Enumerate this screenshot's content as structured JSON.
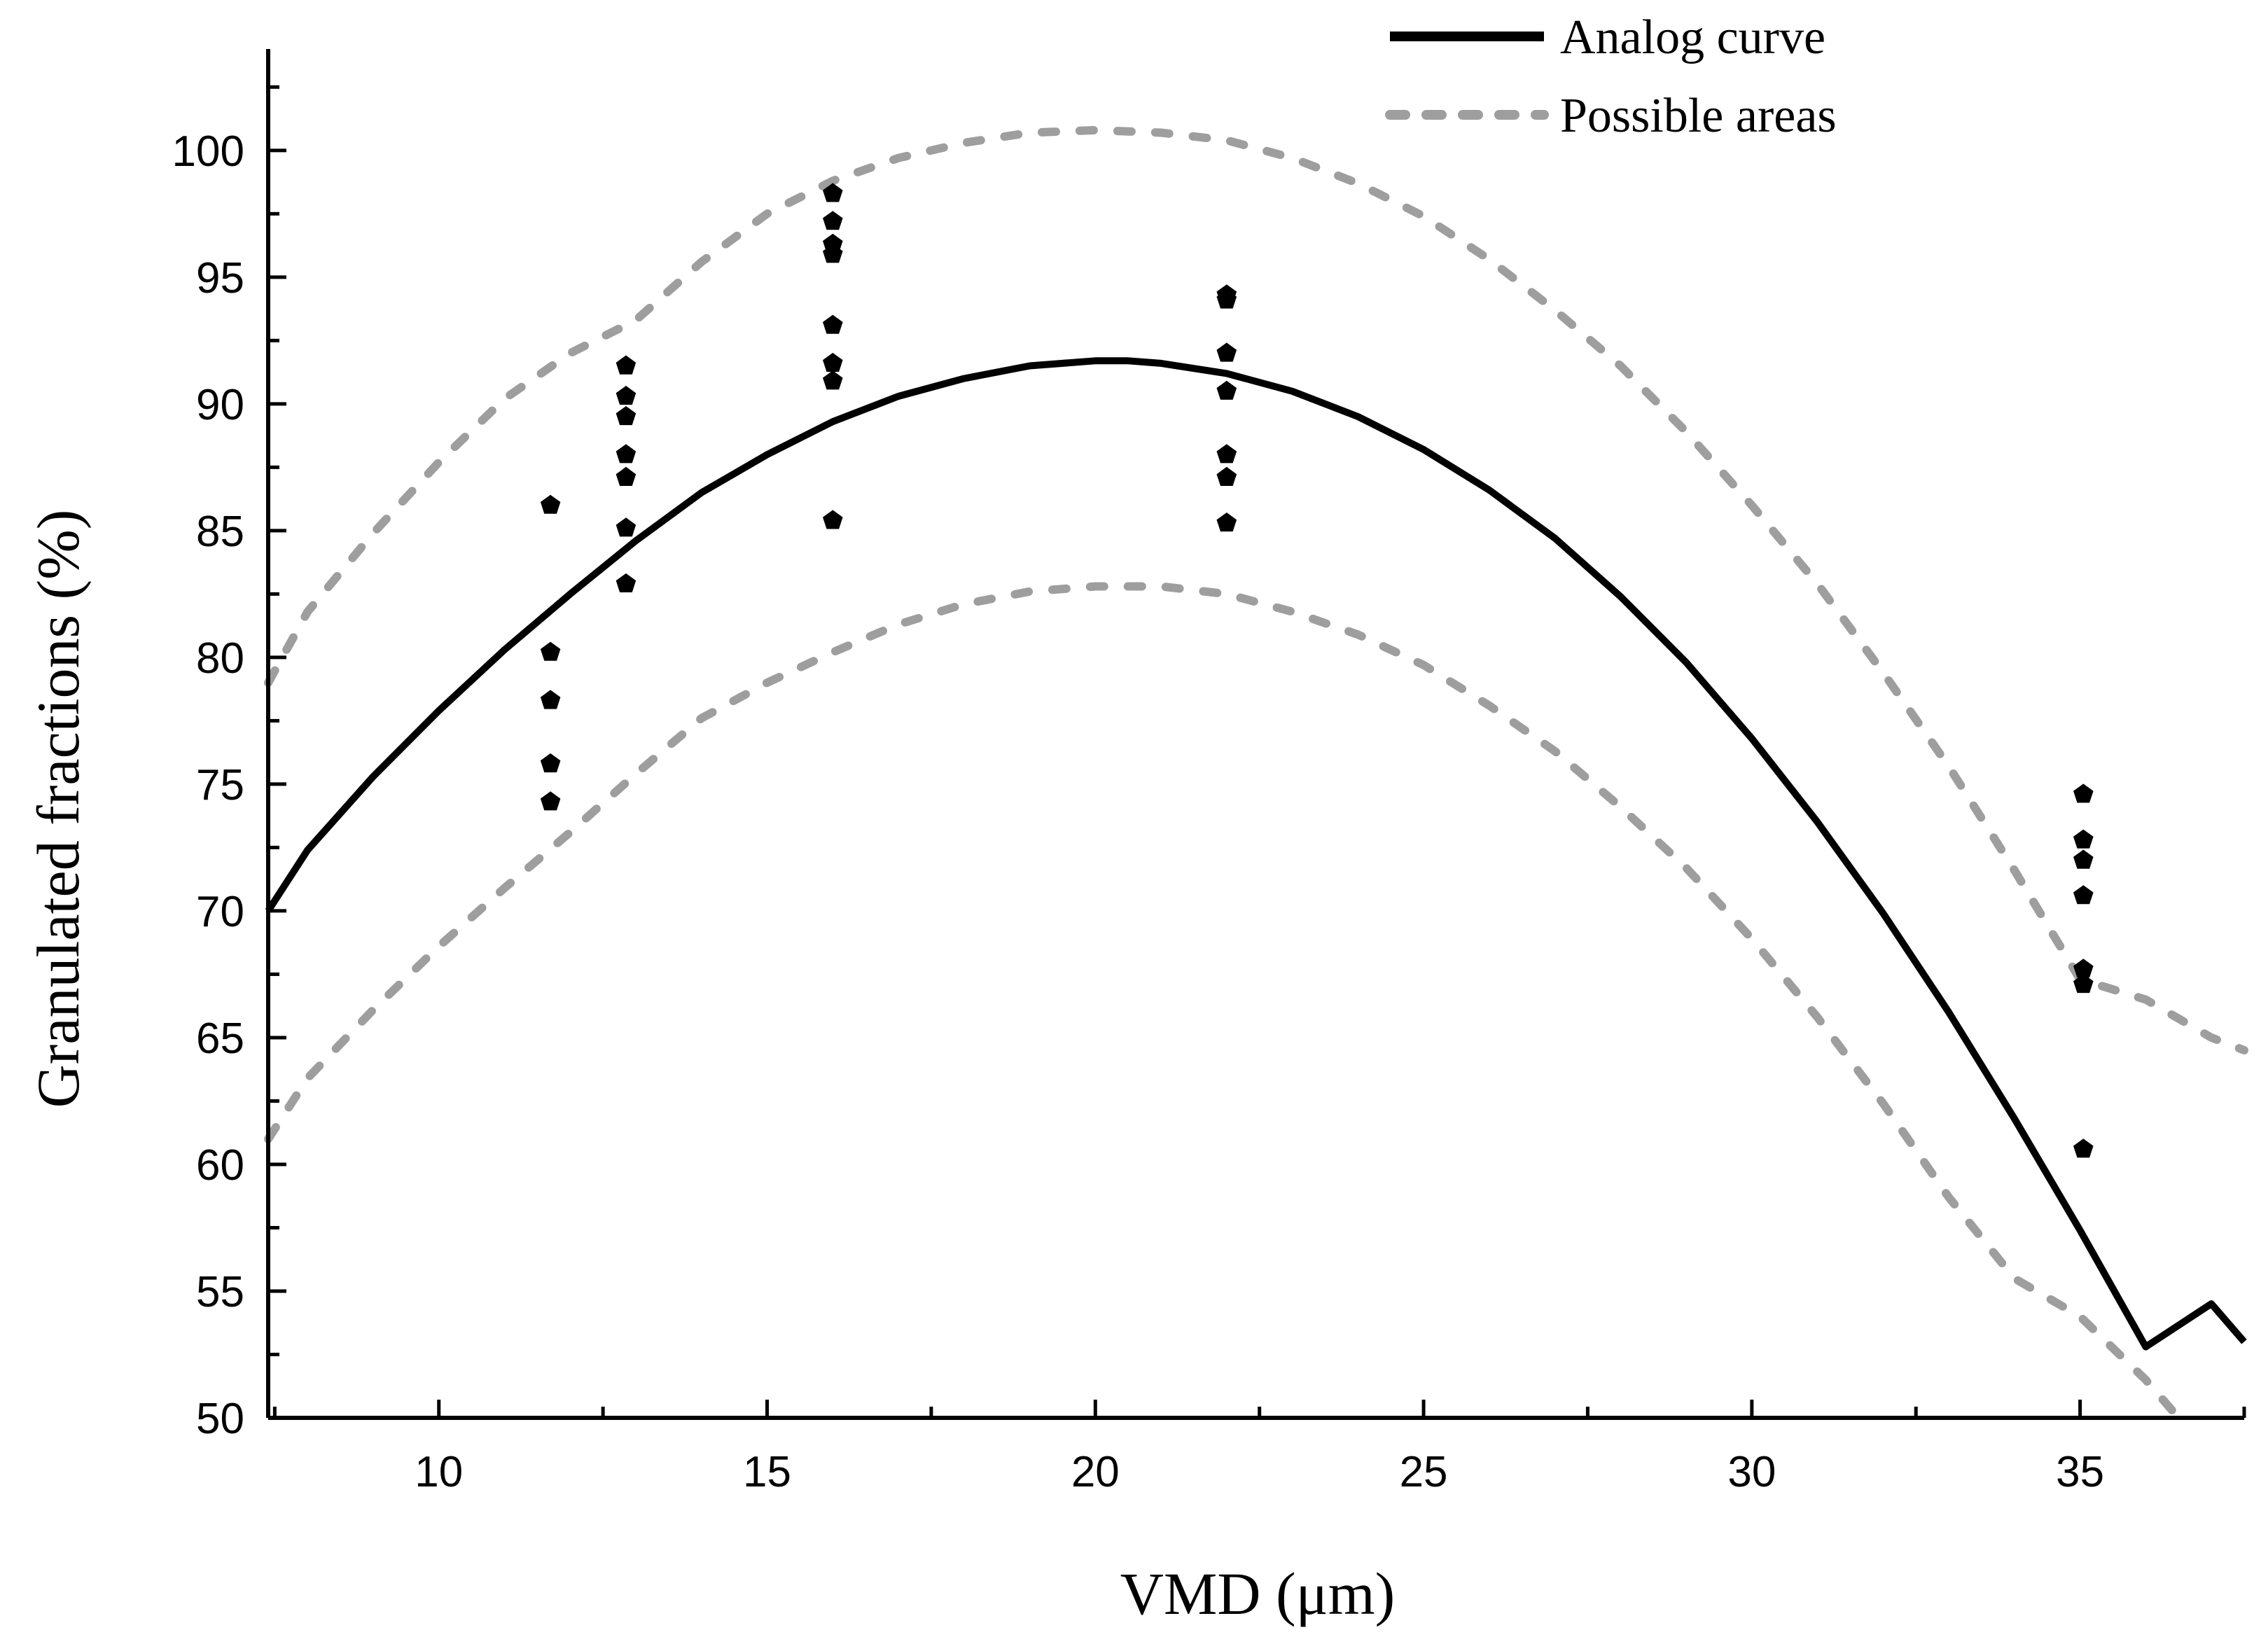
{
  "chart_data": {
    "type": "scatter",
    "xlabel": "VMD (μm)",
    "ylabel": "Granulated fractions (%)",
    "xlim": [
      7.4,
      37.5
    ],
    "ylim": [
      50,
      104
    ],
    "x_ticks": [
      10,
      15,
      20,
      25,
      30,
      35
    ],
    "y_ticks": [
      50,
      55,
      60,
      65,
      70,
      75,
      80,
      85,
      90,
      95,
      100
    ],
    "grid": false,
    "legend_position": "top-right",
    "colors": {
      "analog": "#000000",
      "possible": "#9e9e9e",
      "points": "#000000"
    },
    "series": [
      {
        "name": "Analog curve",
        "kind": "line",
        "x": [
          7.4,
          8,
          9,
          10,
          11,
          12,
          13,
          14,
          15,
          16,
          17,
          18,
          19,
          20,
          20.5,
          21,
          22,
          23,
          24,
          25,
          26,
          27,
          28,
          29,
          30,
          31,
          32,
          33,
          34,
          35,
          36,
          37,
          37.5
        ],
        "y": [
          70.0,
          72.4,
          75.3,
          77.9,
          80.3,
          82.5,
          84.6,
          86.5,
          88.0,
          89.3,
          90.3,
          91.0,
          91.5,
          91.7,
          91.7,
          91.6,
          91.2,
          90.5,
          89.5,
          88.2,
          86.6,
          84.7,
          82.4,
          79.8,
          76.8,
          73.5,
          69.9,
          66.0,
          61.8,
          57.4,
          52.8,
          54.5,
          53.0
        ]
      },
      {
        "name": "Possible areas",
        "kind": "dotted-line",
        "x": [
          7.4,
          8,
          9,
          10,
          11,
          12,
          13,
          14,
          15,
          16,
          17,
          18,
          19,
          20,
          21,
          22,
          23,
          24,
          25,
          26,
          27,
          28,
          29,
          30,
          31,
          32,
          33,
          34,
          35,
          36,
          37,
          37.5
        ],
        "y": [
          79.0,
          81.8,
          84.9,
          87.7,
          90.2,
          92.0,
          93.3,
          95.6,
          97.5,
          98.8,
          99.7,
          100.3,
          100.7,
          100.8,
          100.7,
          100.4,
          99.7,
          98.7,
          97.4,
          95.7,
          93.7,
          91.5,
          88.9,
          86.0,
          82.9,
          79.4,
          75.7,
          71.6,
          67.3,
          66.5,
          65.0,
          64.5
        ]
      },
      {
        "name": "",
        "kind": "dotted-line",
        "x": [
          7.4,
          8,
          9,
          10,
          11,
          12,
          13,
          14,
          15,
          16,
          17,
          18,
          19,
          20,
          21,
          22,
          23,
          24,
          25,
          26,
          27,
          28,
          29,
          30,
          31,
          32,
          33,
          34,
          35,
          36,
          36.4
        ],
        "y": [
          61.0,
          63.4,
          66.1,
          68.6,
          70.9,
          73.1,
          75.4,
          77.6,
          79.0,
          80.2,
          81.3,
          82.1,
          82.6,
          82.8,
          82.8,
          82.5,
          81.8,
          80.9,
          79.7,
          78.1,
          76.3,
          74.1,
          71.7,
          68.9,
          65.8,
          62.4,
          58.7,
          55.5,
          54.0,
          51.5,
          50.3
        ]
      },
      {
        "name": "",
        "kind": "points",
        "x": [
          11.7,
          11.7,
          11.7,
          11.7,
          11.7,
          12.85,
          12.85,
          12.85,
          12.85,
          12.85,
          12.85,
          12.85,
          16.0,
          16.0,
          16.0,
          16.0,
          16.0,
          16.0,
          16.0,
          16.0,
          22.0,
          22.0,
          22.0,
          22.0,
          22.0,
          22.0,
          22.0,
          35.05,
          35.05,
          35.05,
          35.05,
          35.05,
          35.05,
          35.05
        ],
        "y": [
          86.0,
          80.2,
          78.3,
          75.8,
          74.3,
          91.5,
          90.3,
          89.5,
          88.0,
          87.1,
          85.1,
          82.9,
          98.3,
          97.2,
          96.3,
          95.9,
          93.1,
          91.6,
          90.9,
          85.4,
          94.3,
          92.0,
          90.5,
          88.0,
          87.1,
          85.3,
          94.1,
          74.6,
          72.8,
          72.0,
          70.6,
          67.7,
          67.1,
          60.6
        ]
      }
    ]
  }
}
